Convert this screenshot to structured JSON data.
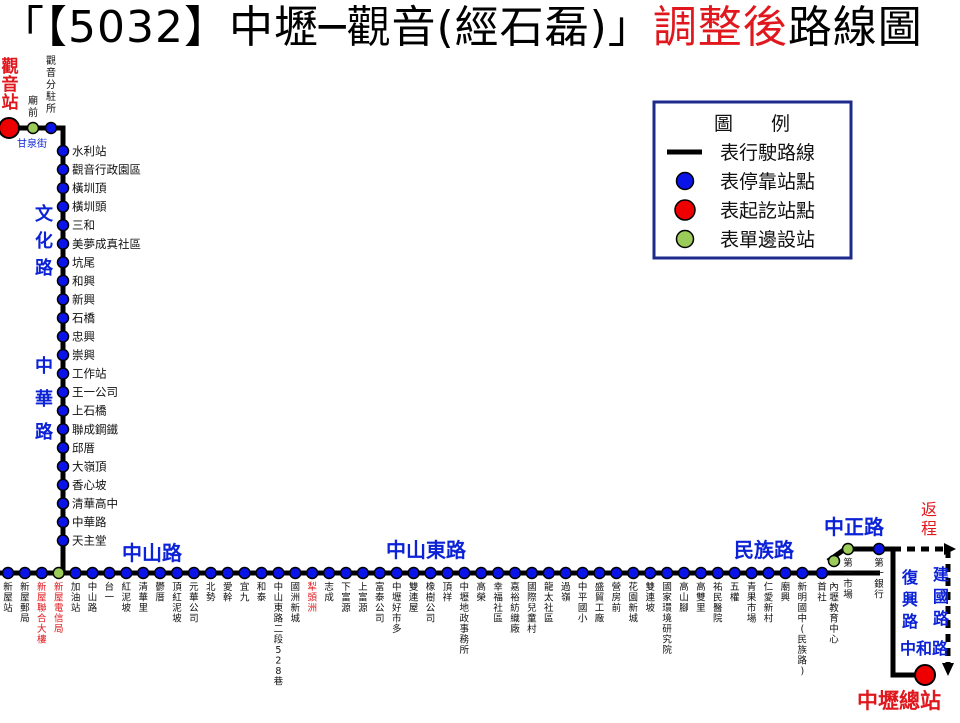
{
  "title": {
    "prefix": "「【5032】中壢─觀音(經石磊)」",
    "highlight": "調整後",
    "suffix": "路線圖"
  },
  "colors": {
    "route": "#000000",
    "stop": "#0a13e8",
    "terminal": "#ee0000",
    "one_side": "#9bcc5a",
    "road_label": "#0c22d6",
    "red_text": "#e0181e",
    "legend_border": "#1d2a8c"
  },
  "legend": {
    "title": "圖　　例",
    "items": [
      {
        "icon": "line-icon",
        "label": "表行駛路線"
      },
      {
        "icon": "stop-dot-icon",
        "label": "表停靠站點"
      },
      {
        "icon": "terminal-dot-icon",
        "label": "表起訖站點"
      },
      {
        "icon": "one-side-stop-icon",
        "label": "表單邊設站"
      }
    ]
  },
  "terminals": {
    "start": "觀音站",
    "end": "中壢總站"
  },
  "top_stops": [
    "觀音分駐所",
    "廟前",
    "甘泉街"
  ],
  "vertical_stops": [
    "水利站",
    "觀音行政園區",
    "橫圳頂",
    "橫圳頭",
    "三和",
    "美夢成真社區",
    "坑尾",
    "和興",
    "新興",
    "石橋",
    "忠興",
    "崇興",
    "工作站",
    "王一公司",
    "上石橋",
    "聯成鋼鐵",
    "邱厝",
    "大嶺頂",
    "香心坡",
    "清華高中",
    "中華路",
    "天主堂"
  ],
  "bottom_stops": [
    "新屋站",
    "新屋郵局",
    "新屋聯合大樓",
    "新屋電信局",
    "加油站",
    "中山路",
    "台一",
    "紅泥坡",
    "清華里",
    "鬱厝",
    "頂紅泥坡",
    "元華公司",
    "北勢",
    "愛幹",
    "宜九",
    "和泰",
    "中山東路二段528巷",
    "國洲新城",
    "犁頭洲",
    "志成",
    "下富源",
    "上富源",
    "富泰公司",
    "中壢好市多",
    "雙連屋",
    "橡樹公司",
    "頂祥",
    "中壢地政事務所",
    "高榮",
    "幸福社區",
    "嘉裕紡織廠",
    "國際兒童村",
    "龍太社區",
    "過嶺",
    "中平國小",
    "盛貿工廠",
    "營房前",
    "花園新城",
    "雙連坡",
    "國家環境研究院",
    "高山腳",
    "高雙里",
    "祐民醫院",
    "五權",
    "青果市場",
    "仁愛新村",
    "廟興",
    "新明國中(民族路)",
    "首社",
    "內壢教育中心",
    "第一市場",
    "第一銀行"
  ],
  "road_names": {
    "wenhua": "文化路",
    "zhonghua": "中華路",
    "zhongshan": "中山路",
    "zhongshan_east": "中山東路",
    "minzu": "民族路",
    "zhongzheng": "中正路",
    "fuxing": "復興路",
    "jianguo": "建國路",
    "zhonghe": "中和路"
  },
  "return_label": "返程"
}
